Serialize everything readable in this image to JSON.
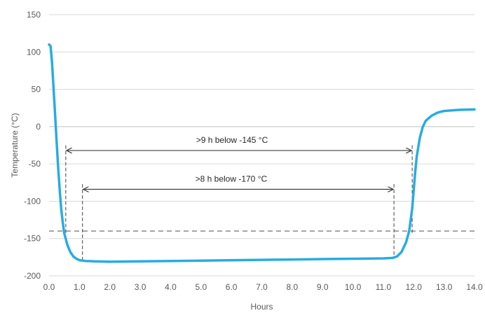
{
  "chart_data": {
    "type": "line",
    "xlabel": "Hours",
    "ylabel": "Temperature (°C)",
    "xlim": [
      0,
      14
    ],
    "ylim": [
      -200,
      150
    ],
    "x_ticks": [
      "0.0",
      "1.0",
      "2.0",
      "3.0",
      "4.0",
      "5.0",
      "6.0",
      "7.0",
      "8.0",
      "9.0",
      "10.0",
      "11.0",
      "12.0",
      "13.0",
      "14.0"
    ],
    "y_ticks": [
      "150",
      "100",
      "50",
      "0",
      "-50",
      "-100",
      "-150",
      "-200"
    ],
    "grid": "horizontal",
    "series": [
      {
        "color": "#29ABE2",
        "points": [
          [
            0.0,
            110
          ],
          [
            0.05,
            108
          ],
          [
            0.1,
            85
          ],
          [
            0.15,
            50
          ],
          [
            0.2,
            15
          ],
          [
            0.25,
            -20
          ],
          [
            0.3,
            -55
          ],
          [
            0.35,
            -85
          ],
          [
            0.4,
            -110
          ],
          [
            0.45,
            -128
          ],
          [
            0.5,
            -143
          ],
          [
            0.6,
            -158
          ],
          [
            0.7,
            -168
          ],
          [
            0.8,
            -174
          ],
          [
            0.9,
            -177
          ],
          [
            1.0,
            -179
          ],
          [
            1.2,
            -180
          ],
          [
            1.5,
            -180.5
          ],
          [
            2.0,
            -181
          ],
          [
            3.0,
            -180.5
          ],
          [
            4.0,
            -180
          ],
          [
            5.0,
            -179.5
          ],
          [
            6.0,
            -179
          ],
          [
            7.0,
            -178.5
          ],
          [
            8.0,
            -178
          ],
          [
            9.0,
            -177.5
          ],
          [
            10.0,
            -177
          ],
          [
            11.0,
            -176.5
          ],
          [
            11.3,
            -176
          ],
          [
            11.45,
            -174
          ],
          [
            11.6,
            -168
          ],
          [
            11.75,
            -155
          ],
          [
            11.85,
            -140
          ],
          [
            11.95,
            -110
          ],
          [
            12.0,
            -85
          ],
          [
            12.05,
            -60
          ],
          [
            12.1,
            -40
          ],
          [
            12.2,
            -15
          ],
          [
            12.3,
            0
          ],
          [
            12.4,
            8
          ],
          [
            12.6,
            15
          ],
          [
            12.8,
            19
          ],
          [
            13.0,
            21
          ],
          [
            13.5,
            22.5
          ],
          [
            14.0,
            23
          ]
        ]
      }
    ],
    "reference_line": {
      "y": -140,
      "style": "dashed",
      "color": "#A6A6A6"
    },
    "annotations": [
      {
        "label": ">9 h below -145 °C",
        "x_start": 0.55,
        "x_end": 11.95,
        "y": -32,
        "vline_top": -25
      },
      {
        "label": ">8 h below -170 °C",
        "x_start": 1.1,
        "x_end": 11.35,
        "y": -84,
        "vline_top": -77
      }
    ]
  }
}
